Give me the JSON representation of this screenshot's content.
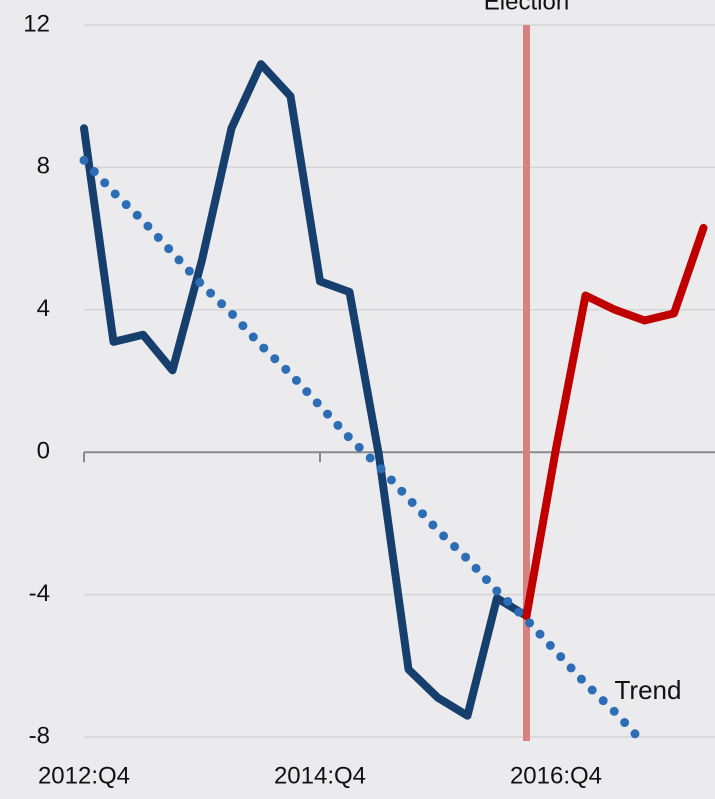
{
  "chart_data": {
    "type": "line",
    "categories": [
      "2012:Q4",
      null,
      null,
      null,
      null,
      null,
      null,
      null,
      "2014:Q4",
      null,
      null,
      null,
      null,
      null,
      null,
      null,
      "2016:Q4",
      null,
      null,
      null,
      null,
      null
    ],
    "series": [
      {
        "color": "#173f6e",
        "values": [
          9.1,
          3.1,
          3.3,
          2.3,
          5.4,
          9.1,
          10.9,
          10.0,
          4.8,
          4.5,
          -0.1,
          -6.1,
          -6.9,
          -7.4,
          -4.1,
          -4.6,
          null,
          null,
          null,
          null,
          null,
          null
        ]
      },
      {
        "color": "#c00000",
        "values": [
          null,
          null,
          null,
          null,
          null,
          null,
          null,
          null,
          null,
          null,
          null,
          null,
          null,
          null,
          null,
          -4.6,
          0.1,
          4.4,
          4.0,
          3.7,
          3.9,
          6.3
        ]
      },
      {
        "name": "Trend",
        "color": "#2d6db5",
        "style": "dotted",
        "values": [
          8.2,
          7.3,
          6.5,
          5.6,
          4.7,
          3.9,
          3.0,
          2.2,
          1.3,
          0.4,
          -0.4,
          -1.3,
          -2.2,
          -3.0,
          -3.9,
          -4.7,
          -5.6,
          -6.5,
          -7.3,
          -8.2,
          null,
          null
        ]
      }
    ],
    "annotations": [
      {
        "text": "Election",
        "category_index": 15,
        "color": "#d98080"
      }
    ],
    "ylim": [
      -8,
      12
    ],
    "yticks": [
      -8,
      -4,
      0,
      4,
      8,
      12
    ],
    "grid": true
  }
}
